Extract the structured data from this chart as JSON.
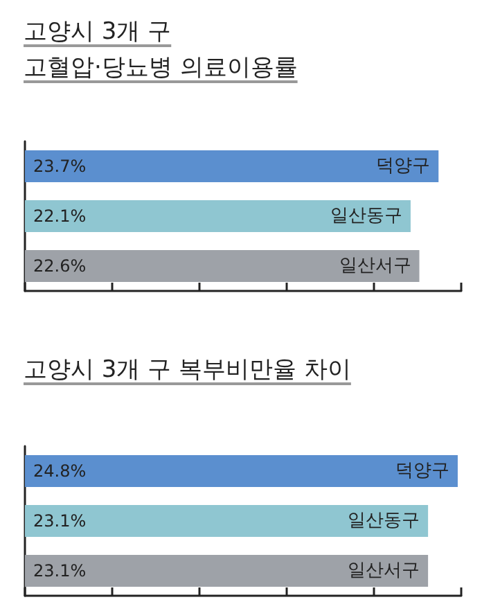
{
  "chart_data": [
    {
      "type": "bar",
      "orientation": "horizontal",
      "title": "고양시 3개 구\n고혈압·당뇨병 의료이용률",
      "categories": [
        "덕양구",
        "일산동구",
        "일산서구"
      ],
      "values": [
        23.7,
        22.1,
        22.6
      ],
      "value_labels": [
        "23.7%",
        "22.1%",
        "22.6%"
      ],
      "colors": [
        "#5b8fcf",
        "#8fc6d1",
        "#9ea2a8"
      ],
      "xlim": [
        0,
        25
      ],
      "xticks": [
        {
          "value": 0,
          "label": null
        },
        {
          "value": 5,
          "label": null
        },
        {
          "value": 10,
          "label": null
        },
        {
          "value": 15,
          "label": null
        },
        {
          "value": 20,
          "label": null
        },
        {
          "value": 25,
          "label": null
        }
      ]
    },
    {
      "type": "bar",
      "orientation": "horizontal",
      "title": "고양시 3개 구 복부비만율 차이",
      "categories": [
        "덕양구",
        "일산동구",
        "일산서구"
      ],
      "values": [
        24.8,
        23.1,
        23.1
      ],
      "value_labels": [
        "24.8%",
        "23.1%",
        "23.1%"
      ],
      "colors": [
        "#5b8fcf",
        "#8fc6d1",
        "#9ea2a8"
      ],
      "xlim": [
        0,
        25
      ],
      "xticks": [
        {
          "value": 0,
          "label": null
        },
        {
          "value": 5,
          "label": null
        },
        {
          "value": 10,
          "label": null
        },
        {
          "value": 15,
          "label": null
        },
        {
          "value": 20,
          "label": null
        },
        {
          "value": 25,
          "label": null
        }
      ]
    }
  ]
}
